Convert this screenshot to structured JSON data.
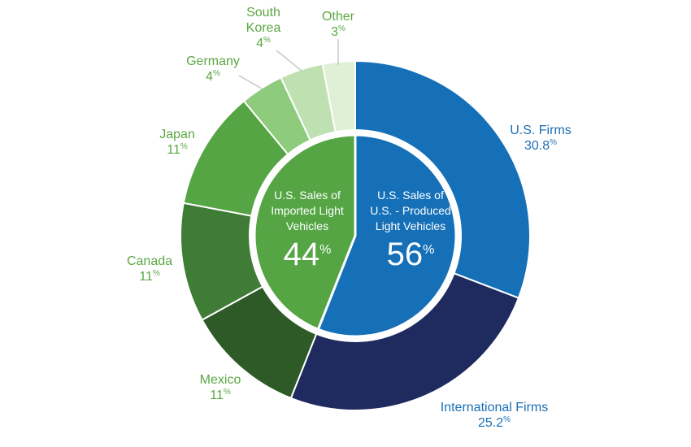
{
  "chart_data": {
    "type": "pie",
    "inner": [
      {
        "label_lines": [
          "U.S. Sales of",
          "Imported Light",
          "Vehicles"
        ],
        "value": 44,
        "value_text": "44",
        "unit": "%",
        "color": "#55a545"
      },
      {
        "label_lines": [
          "U.S. Sales of",
          "U.S. - Produced",
          "Light Vehicles"
        ],
        "value": 56,
        "value_text": "56",
        "unit": "%",
        "color": "#1570b8"
      }
    ],
    "outer": [
      {
        "name": "U.S. Firms",
        "value": 30.8,
        "value_text": "30.8",
        "unit": "%",
        "color": "#1570b8",
        "label_color": "#1a6fb5"
      },
      {
        "name": "International Firms",
        "value": 25.2,
        "value_text": "25.2",
        "unit": "%",
        "color": "#1f2a5e",
        "label_color": "#1a6fb5"
      },
      {
        "name": "Mexico",
        "value": 11,
        "value_text": "11",
        "unit": "%",
        "color": "#2d5a27",
        "label_color": "#5aa843"
      },
      {
        "name": "Canada",
        "value": 11,
        "value_text": "11",
        "unit": "%",
        "color": "#3f7c36",
        "label_color": "#5aa843"
      },
      {
        "name": "Japan",
        "value": 11,
        "value_text": "11",
        "unit": "%",
        "color": "#55a545",
        "label_color": "#5aa843"
      },
      {
        "name": "Germany",
        "value": 4,
        "value_text": "4",
        "unit": "%",
        "color": "#8fcb7d",
        "label_color": "#5aa843"
      },
      {
        "name": "South Korea",
        "name_lines": [
          "South",
          "Korea"
        ],
        "value": 4,
        "value_text": "4",
        "unit": "%",
        "color": "#bfe0b0",
        "label_color": "#5aa843"
      },
      {
        "name": "Other",
        "value": 3,
        "value_text": "3",
        "unit": "%",
        "color": "#dff0d6",
        "label_color": "#5aa843"
      }
    ],
    "leader_color": "#c9c9c9"
  }
}
